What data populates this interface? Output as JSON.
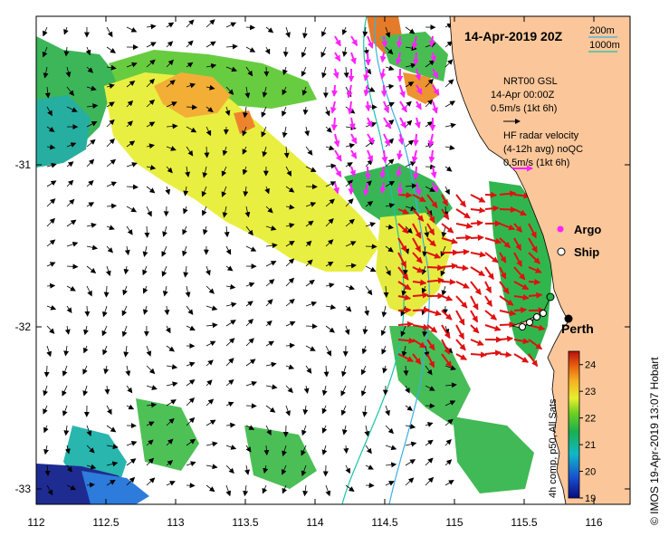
{
  "title": "14-Apr-2019 20Z",
  "depth_contours": {
    "c1": "200m",
    "c2": "1000m",
    "c1_color": "#3ab0e0",
    "c2_color": "#18c4a8"
  },
  "wind": {
    "line1": "NRT00 GSL",
    "line2": "14-Apr 00:00Z",
    "line3": "0.5m/s (1kt 6h)"
  },
  "radar": {
    "line1": "HF radar velocity",
    "line2": "(4-12h avg) noQC",
    "line3": "0.5m/s (1kt 6h)",
    "color": "#e01010",
    "ref_color": "#ff22ff"
  },
  "legend": {
    "argo": "Argo",
    "ship": "Ship",
    "argo_color": "#ff22ff"
  },
  "city": {
    "name": "Perth"
  },
  "x_ticks": [
    "112",
    "112.5",
    "113",
    "113.5",
    "114",
    "114.5",
    "115",
    "115.5",
    "116"
  ],
  "y_ticks": [
    "-31",
    "-32",
    "-33"
  ],
  "colorbar": {
    "label": "4h comp, p50, All Sats",
    "ticks": [
      "19",
      "20",
      "21",
      "22",
      "23",
      "24"
    ],
    "range": [
      19,
      24.5
    ]
  },
  "credit": "© IMOS 19-Apr-2019 13:07 Hobart",
  "colors": {
    "land": "#fbc79a",
    "water": "#ffffff"
  }
}
